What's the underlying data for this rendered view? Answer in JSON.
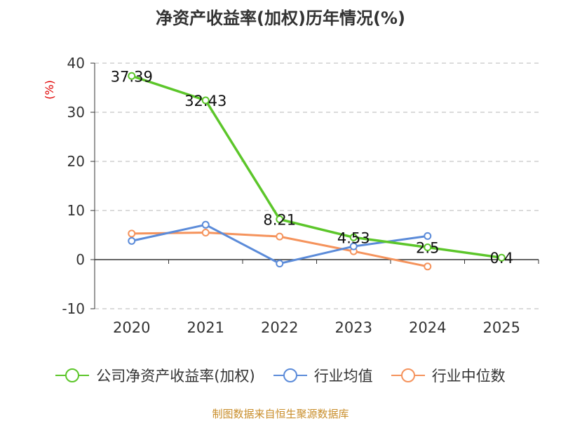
{
  "chart_data": {
    "type": "line",
    "title": "净资产收益率(加权)历年情况(%)",
    "ylabel": "(%)",
    "xlabel": "",
    "categories": [
      "2020",
      "2021",
      "2022",
      "2023",
      "2024",
      "2025"
    ],
    "ylim": [
      -10,
      40
    ],
    "yticks": [
      "40",
      "30",
      "20",
      "10",
      "0",
      "-10"
    ],
    "grid": true,
    "legend_position": "bottom",
    "series": [
      {
        "name": "公司净资产收益率(加权)",
        "color": "#5cc62a",
        "values": [
          37.39,
          32.43,
          8.21,
          4.53,
          2.5,
          0.4
        ],
        "labels": [
          "37.39",
          "32.43",
          "8.21",
          "4.53",
          "2.5",
          "0.4"
        ]
      },
      {
        "name": "行业均值",
        "color": "#5b8bd9",
        "values": [
          3.8,
          7.1,
          -0.8,
          2.7,
          4.8,
          null
        ]
      },
      {
        "name": "行业中位数",
        "color": "#f5935c",
        "values": [
          5.3,
          5.5,
          4.7,
          1.7,
          -1.4,
          null
        ]
      }
    ],
    "source": "制图数据来自恒生聚源数据库"
  }
}
